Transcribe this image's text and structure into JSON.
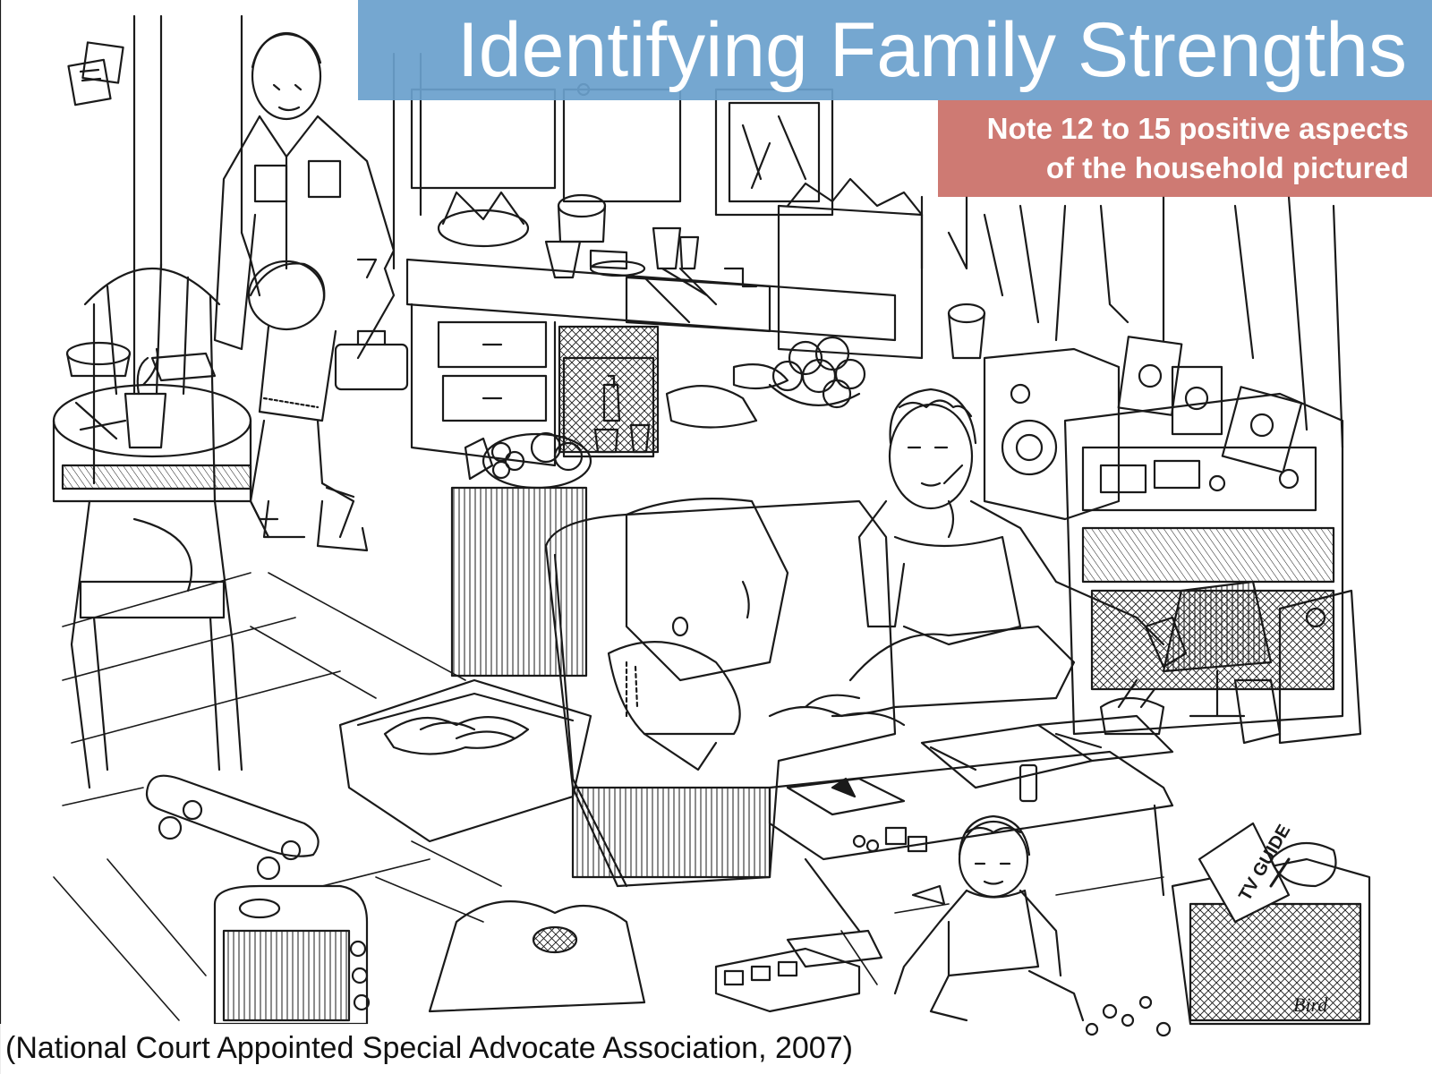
{
  "slide": {
    "title": "Identifying Family Strengths",
    "note_lines": [
      "Note 12 to 15 positive aspects",
      "of the household pictured"
    ],
    "citation": "(National Court Appointed Special Advocate Association, 2007)"
  },
  "illustration": {
    "tv_guide_label": "TV GUIDE",
    "artist_signature": "Bird"
  },
  "colors": {
    "title_bar": "#6aa0cc",
    "note_box": "#c76860",
    "line_art": "#1a1a1a"
  }
}
